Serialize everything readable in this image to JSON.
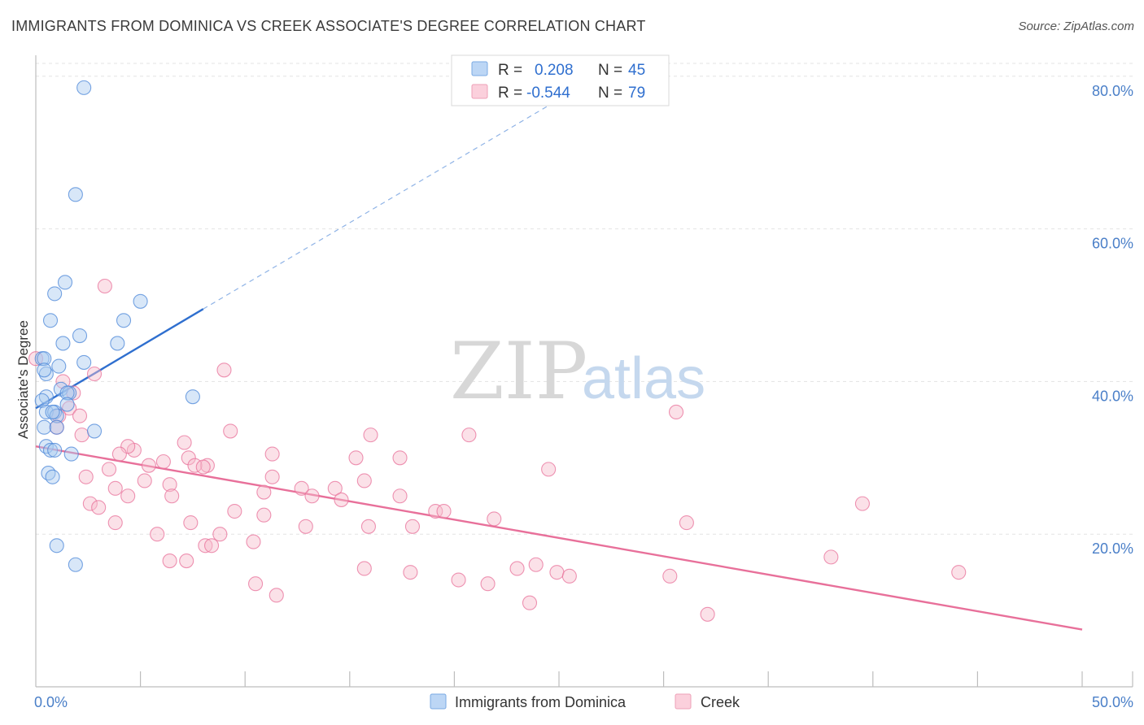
{
  "header": {
    "title": "IMMIGRANTS FROM DOMINICA VS CREEK ASSOCIATE'S DEGREE CORRELATION CHART",
    "source": "Source: ZipAtlas.com"
  },
  "watermark": {
    "zip": "ZIP",
    "atlas": "atlas"
  },
  "legend": {
    "rows": [
      {
        "r_label": "R =",
        "r_value": "0.208",
        "n_label": "N =",
        "n_value": "45",
        "color": "#9ec3ef"
      },
      {
        "r_label": "R =",
        "r_value": "-0.544",
        "n_label": "N =",
        "n_value": "79",
        "color": "#f5b8c9"
      }
    ]
  },
  "chart_data": {
    "type": "scatter",
    "title": "IMMIGRANTS FROM DOMINICA VS CREEK ASSOCIATE'S DEGREE CORRELATION CHART",
    "xlabel": "",
    "ylabel": "Associate's Degree",
    "xlim": [
      0,
      50
    ],
    "ylim": [
      0,
      82
    ],
    "x_tick_labels": [
      "0.0%",
      "50.0%"
    ],
    "y_ticks": [
      20,
      40,
      60,
      80
    ],
    "y_tick_labels": [
      "20.0%",
      "40.0%",
      "60.0%",
      "80.0%"
    ],
    "grid": true,
    "legend_position": "top-center",
    "series": [
      {
        "name": "Immigrants from Dominica",
        "color": "#4a86d8",
        "fill": "#a9c9f0",
        "trend": {
          "x0": 0,
          "y0": 36.5,
          "x1": 8,
          "y1": 49.5,
          "dashed_to_x": 27.5,
          "dashed_to_y": 81
        },
        "points": [
          [
            2.3,
            78.5
          ],
          [
            1.9,
            64.5
          ],
          [
            1.4,
            53
          ],
          [
            0.9,
            51.5
          ],
          [
            5,
            50.5
          ],
          [
            0.7,
            48
          ],
          [
            4.2,
            48
          ],
          [
            2.1,
            46
          ],
          [
            1.3,
            45
          ],
          [
            3.9,
            45
          ],
          [
            0.3,
            43
          ],
          [
            0.4,
            43
          ],
          [
            1.1,
            42
          ],
          [
            2.3,
            42.5
          ],
          [
            0.5,
            41
          ],
          [
            0.4,
            41.5
          ],
          [
            1.2,
            39
          ],
          [
            1.6,
            38.5
          ],
          [
            1.5,
            38.5
          ],
          [
            1.5,
            37
          ],
          [
            0.5,
            38
          ],
          [
            0.3,
            37.5
          ],
          [
            0.5,
            36
          ],
          [
            0.9,
            36
          ],
          [
            1.0,
            35.5
          ],
          [
            0.8,
            36
          ],
          [
            0.4,
            34
          ],
          [
            1.0,
            34
          ],
          [
            2.8,
            33.5
          ],
          [
            0.5,
            31.5
          ],
          [
            0.7,
            31
          ],
          [
            0.9,
            31
          ],
          [
            1.7,
            30.5
          ],
          [
            0.6,
            28
          ],
          [
            0.8,
            27.5
          ],
          [
            7.5,
            38
          ],
          [
            1.0,
            18.5
          ],
          [
            1.9,
            16
          ]
        ]
      },
      {
        "name": "Creek",
        "color": "#e8709a",
        "fill": "#f7bccd",
        "trend": {
          "x0": 0,
          "y0": 31.5,
          "x1": 50,
          "y1": 7.5
        },
        "points": [
          [
            0.0,
            43
          ],
          [
            3.3,
            52.5
          ],
          [
            2.8,
            41
          ],
          [
            1.3,
            40
          ],
          [
            1.8,
            38.5
          ],
          [
            1.6,
            36.5
          ],
          [
            1.1,
            35.5
          ],
          [
            2.1,
            35.5
          ],
          [
            1.0,
            34
          ],
          [
            2.2,
            33
          ],
          [
            9.0,
            41.5
          ],
          [
            7.1,
            32
          ],
          [
            4.7,
            31
          ],
          [
            4.4,
            31.5
          ],
          [
            4.0,
            30.5
          ],
          [
            5.4,
            29
          ],
          [
            6.1,
            29.5
          ],
          [
            7.3,
            30
          ],
          [
            8.2,
            29
          ],
          [
            3.5,
            28.5
          ],
          [
            2.4,
            27.5
          ],
          [
            5.2,
            27
          ],
          [
            6.4,
            26.5
          ],
          [
            3.8,
            26
          ],
          [
            6.5,
            25
          ],
          [
            4.4,
            25
          ],
          [
            2.6,
            24
          ],
          [
            3.0,
            23.5
          ],
          [
            7.6,
            29
          ],
          [
            8.0,
            28.8
          ],
          [
            9.3,
            33.5
          ],
          [
            11.3,
            30.5
          ],
          [
            11.3,
            27.5
          ],
          [
            10.9,
            25.5
          ],
          [
            9.5,
            23
          ],
          [
            10.9,
            22.5
          ],
          [
            12.7,
            26
          ],
          [
            13.2,
            25
          ],
          [
            14.3,
            26
          ],
          [
            14.6,
            24.5
          ],
          [
            15.3,
            30
          ],
          [
            16.0,
            33
          ],
          [
            15.7,
            27
          ],
          [
            15.9,
            21
          ],
          [
            17.4,
            30
          ],
          [
            17.4,
            25
          ],
          [
            18.0,
            21
          ],
          [
            19.1,
            23
          ],
          [
            19.5,
            23
          ],
          [
            20.7,
            33
          ],
          [
            21.9,
            22
          ],
          [
            24.5,
            28.5
          ],
          [
            30.6,
            36
          ],
          [
            31.1,
            21.5
          ],
          [
            39.5,
            24
          ],
          [
            3.8,
            21.5
          ],
          [
            5.8,
            20
          ],
          [
            6.4,
            16.5
          ],
          [
            7.2,
            16.5
          ],
          [
            7.4,
            21.5
          ],
          [
            8.1,
            18.5
          ],
          [
            8.4,
            18.5
          ],
          [
            8.8,
            20
          ],
          [
            10.4,
            19
          ],
          [
            10.5,
            13.5
          ],
          [
            11.5,
            12
          ],
          [
            12.9,
            21
          ],
          [
            15.7,
            15.5
          ],
          [
            17.9,
            15
          ],
          [
            20.2,
            14
          ],
          [
            21.6,
            13.5
          ],
          [
            23.0,
            15.5
          ],
          [
            23.6,
            11
          ],
          [
            23.9,
            16
          ],
          [
            24.9,
            15
          ],
          [
            25.5,
            14.5
          ],
          [
            30.3,
            14.5
          ],
          [
            32.1,
            9.5
          ],
          [
            38.0,
            17
          ],
          [
            44.1,
            15
          ]
        ]
      }
    ]
  }
}
